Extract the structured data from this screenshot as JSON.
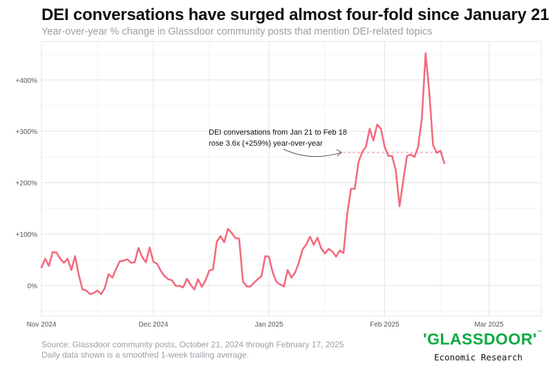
{
  "chart_data": {
    "type": "line",
    "title": "DEI conversations have surged almost four-fold since January 21",
    "subtitle": "Year-over-year % change in Glassdoor community posts that mention DEI-related topics",
    "xlabel": "",
    "ylabel": "",
    "x_tick_labels": [
      "Nov 2024",
      "Dec 2024",
      "Jan 2025",
      "Feb 2025",
      "Mar 2025"
    ],
    "x_ticks": [
      "2024-11-01",
      "2024-12-01",
      "2025-01-01",
      "2025-02-01",
      "2025-03-01"
    ],
    "x_range": [
      "2024-11-01",
      "2025-03-15"
    ],
    "y_tick_labels": [
      "0%",
      "+100%",
      "+200%",
      "+300%",
      "+400%"
    ],
    "y_ticks": [
      0,
      100,
      200,
      300,
      400
    ],
    "ylim": [
      -60,
      475
    ],
    "grid": true,
    "series": [
      {
        "color": "#f26b7e",
        "x": [
          "2024-11-01",
          "2024-11-02",
          "2024-11-03",
          "2024-11-04",
          "2024-11-05",
          "2024-11-06",
          "2024-11-07",
          "2024-11-08",
          "2024-11-09",
          "2024-11-10",
          "2024-11-11",
          "2024-11-12",
          "2024-11-13",
          "2024-11-14",
          "2024-11-15",
          "2024-11-16",
          "2024-11-17",
          "2024-11-18",
          "2024-11-19",
          "2024-11-20",
          "2024-11-21",
          "2024-11-22",
          "2024-11-23",
          "2024-11-24",
          "2024-11-25",
          "2024-11-26",
          "2024-11-27",
          "2024-11-28",
          "2024-11-29",
          "2024-11-30",
          "2024-12-01",
          "2024-12-02",
          "2024-12-03",
          "2024-12-04",
          "2024-12-05",
          "2024-12-06",
          "2024-12-07",
          "2024-12-08",
          "2024-12-09",
          "2024-12-10",
          "2024-12-11",
          "2024-12-12",
          "2024-12-13",
          "2024-12-14",
          "2024-12-15",
          "2024-12-16",
          "2024-12-17",
          "2024-12-18",
          "2024-12-19",
          "2024-12-20",
          "2024-12-21",
          "2024-12-22",
          "2024-12-23",
          "2024-12-24",
          "2024-12-25",
          "2024-12-26",
          "2024-12-27",
          "2024-12-28",
          "2024-12-29",
          "2024-12-30",
          "2024-12-31",
          "2025-01-01",
          "2025-01-02",
          "2025-01-03",
          "2025-01-04",
          "2025-01-05",
          "2025-01-06",
          "2025-01-07",
          "2025-01-08",
          "2025-01-09",
          "2025-01-10",
          "2025-01-11",
          "2025-01-12",
          "2025-01-13",
          "2025-01-14",
          "2025-01-15",
          "2025-01-16",
          "2025-01-17",
          "2025-01-18",
          "2025-01-19",
          "2025-01-20",
          "2025-01-21",
          "2025-01-22",
          "2025-01-23",
          "2025-01-24",
          "2025-01-25",
          "2025-01-26",
          "2025-01-27",
          "2025-01-28",
          "2025-01-29",
          "2025-01-30",
          "2025-01-31",
          "2025-02-01",
          "2025-02-02",
          "2025-02-03",
          "2025-02-04",
          "2025-02-05",
          "2025-02-06",
          "2025-02-07",
          "2025-02-08",
          "2025-02-09",
          "2025-02-10",
          "2025-02-11",
          "2025-02-12",
          "2025-02-13",
          "2025-02-14",
          "2025-02-15",
          "2025-02-16",
          "2025-02-17"
        ],
        "y": [
          35,
          52,
          38,
          65,
          64,
          52,
          44,
          52,
          30,
          57,
          20,
          -8,
          -10,
          -17,
          -15,
          -10,
          -17,
          -5,
          22,
          15,
          32,
          47,
          48,
          51,
          44,
          45,
          73,
          55,
          45,
          74,
          46,
          42,
          28,
          18,
          12,
          10,
          -1,
          -1,
          -4,
          13,
          1,
          -8,
          12,
          -3,
          10,
          29,
          31,
          85,
          96,
          84,
          110,
          102,
          92,
          91,
          8,
          -2,
          -2,
          5,
          12,
          18,
          57,
          56,
          25,
          7,
          2,
          -2,
          30,
          15,
          25,
          44,
          70,
          80,
          95,
          79,
          93,
          72,
          62,
          71,
          66,
          56,
          68,
          63,
          140,
          188,
          188,
          240,
          260,
          270,
          305,
          282,
          313,
          305,
          270,
          252,
          252,
          224,
          154,
          205,
          252,
          255,
          250,
          270,
          325,
          452,
          375,
          273,
          258,
          262,
          238
        ]
      }
    ],
    "reference_line": {
      "y": 259,
      "from": "2025-01-21",
      "to": "2025-02-17",
      "color": "#f7b7c0"
    },
    "annotation": {
      "lines": [
        "DEI conversations from Jan 21 to Feb 18",
        "rose 3.6x (+259%) year-over-year"
      ]
    }
  },
  "footer": {
    "source": "Source: Glassdoor community posts, October 21, 2024 through February 17, 2025",
    "note": "Daily data shown is a smoothed 1-week trailing average."
  },
  "brand": {
    "wordmark": "'GLASSDOOR'",
    "wordmark_tm": "™",
    "division": "Economic Research"
  }
}
